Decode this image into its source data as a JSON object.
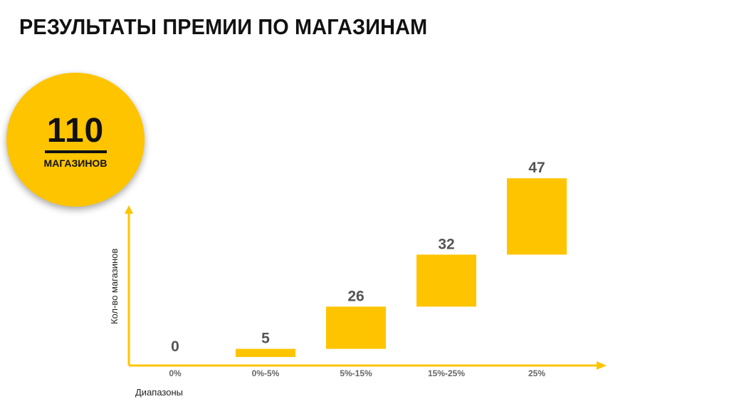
{
  "title": "РЕЗУЛЬТАТЫ ПРЕМИИ ПО МАГАЗИНАМ",
  "badge": {
    "value": "110",
    "label": "МАГАЗИНОВ",
    "color": "#ffc400"
  },
  "chart_data": {
    "type": "bar",
    "categories": [
      "0%",
      "0%-5%",
      "5%-15%",
      "15%-25%",
      "25%"
    ],
    "values": [
      0,
      5,
      26,
      32,
      47
    ],
    "xlabel": "Диапазоны",
    "ylabel": "Кол-во магазинов",
    "ylim": [
      0,
      110
    ],
    "grid": false,
    "legend": "none",
    "bar_color": "#ffc400",
    "axis_color": "#ffc400"
  }
}
